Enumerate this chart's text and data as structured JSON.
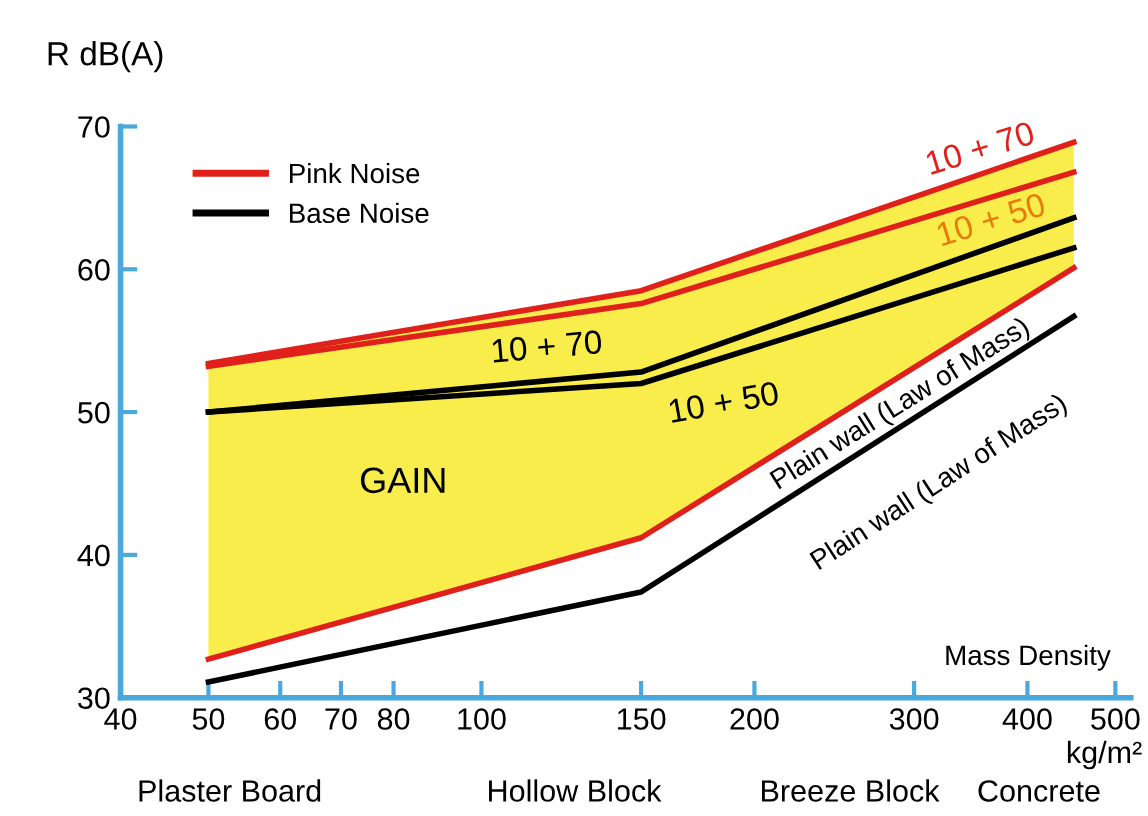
{
  "chart_data": {
    "type": "line",
    "ylabel": "R dB(A)",
    "xlabel": "kg/m²",
    "log": "x",
    "xlim": [
      40,
      520
    ],
    "ylim": [
      30,
      70
    ],
    "xticks": [
      40,
      50,
      60,
      70,
      80,
      100,
      150,
      200,
      300,
      400,
      500
    ],
    "yticks": [
      30,
      40,
      50,
      60,
      70
    ],
    "x": [
      50,
      150,
      450
    ],
    "series": [
      {
        "name": "Pink Noise",
        "color": "#e0201b",
        "values": [
          53.4,
          58.5,
          68.9
        ],
        "lower": [
          32.7,
          41.2,
          60.1
        ],
        "upper": [
          53.4,
          58.5,
          68.9
        ]
      },
      {
        "color": "#e0201b",
        "values": [
          53.2,
          57.6,
          66.8
        ]
      },
      {
        "color": "#e0201b",
        "values": [
          32.7,
          41.2,
          60.1
        ]
      },
      {
        "name": "Base Noise",
        "color": "#000000",
        "values": [
          50.0,
          52.8,
          63.6
        ]
      },
      {
        "color": "#000000",
        "values": [
          50.0,
          52.0,
          61.5
        ]
      },
      {
        "color": "#000000",
        "values": [
          31.1,
          37.4,
          56.7
        ]
      }
    ],
    "grid": false,
    "legend": "top left",
    "marker": "none",
    "line_style": "solid",
    "annotations": [
      "10 + 70",
      "10 + 50",
      "10 + 70",
      "10 + 50",
      "Plain wall (Law of Mass)",
      "Plain wall (Law of Mass)",
      "GAIN",
      "Mass Density",
      "Plaster Board",
      "Hollow Block",
      "Breeze Block",
      "Concrete"
    ]
  }
}
